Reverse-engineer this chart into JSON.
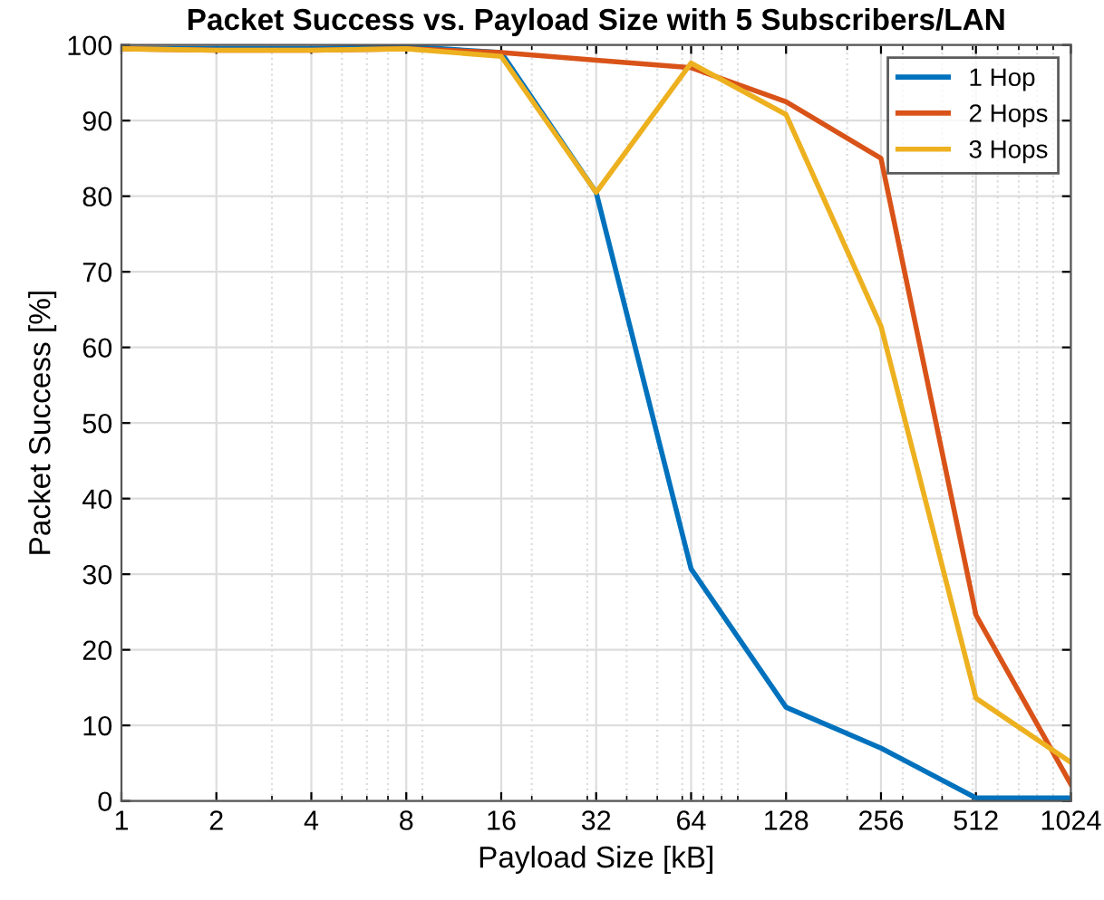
{
  "chart_data": {
    "type": "line",
    "title": "Packet Success vs. Payload Size with 5 Subscribers/LAN",
    "xlabel": "Payload Size [kB]",
    "ylabel": "Packet Success [%]",
    "x": [
      1,
      2,
      4,
      8,
      16,
      32,
      64,
      128,
      256,
      512,
      1024
    ],
    "series": [
      {
        "name": "1 Hop",
        "color": "#0072bd",
        "values": [
          99.5,
          99.5,
          99.5,
          99.8,
          99,
          80.5,
          30.7,
          12.4,
          7,
          0.4,
          0.4
        ]
      },
      {
        "name": "2 Hops",
        "color": "#d95319",
        "values": [
          99.5,
          99.3,
          99.3,
          99.5,
          99,
          98,
          97,
          92.5,
          85,
          24.6,
          2.2
        ]
      },
      {
        "name": "3 Hops",
        "color": "#edb120",
        "values": [
          99.5,
          99.3,
          99.3,
          99.5,
          98.5,
          80.5,
          97.6,
          90.8,
          62.8,
          13.6,
          5.1
        ]
      }
    ],
    "log": "x",
    "xlim": [
      1,
      1024
    ],
    "xticks": [
      1,
      2,
      4,
      8,
      16,
      32,
      64,
      128,
      256,
      512,
      1024
    ],
    "ylim": [
      0,
      100
    ],
    "yticks": [
      0,
      10,
      20,
      30,
      40,
      50,
      60,
      70,
      80,
      90,
      100
    ],
    "grid": true,
    "legend": "top right",
    "marker": "none",
    "line_style": "solid"
  }
}
